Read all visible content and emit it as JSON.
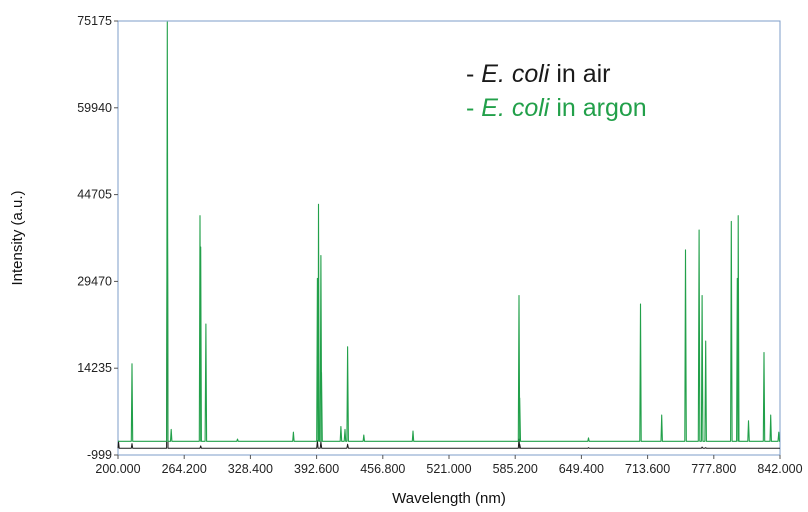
{
  "chart_data": {
    "type": "line",
    "title": "",
    "xlabel": "Wavelength (nm)",
    "ylabel": "Intensity (a.u.)",
    "xlim": [
      200.0,
      842.0
    ],
    "ylim": [
      -999,
      75175
    ],
    "x_ticks": [
      200.0,
      264.2,
      328.4,
      392.6,
      456.8,
      521.0,
      585.2,
      649.4,
      713.6,
      777.8,
      842.0
    ],
    "x_tick_labels": [
      "200.000",
      "264.200",
      "328.400",
      "392.600",
      "456.800",
      "521.000",
      "585.200",
      "649.400",
      "713.600",
      "777.800",
      "842.000"
    ],
    "y_ticks": [
      -999,
      14235,
      29470,
      44705,
      59940,
      75175
    ],
    "y_tick_labels": [
      "-999",
      "14235",
      "29470",
      "44705",
      "59940",
      "75175"
    ],
    "grid": false,
    "legend_position": "top-right",
    "legend": [
      {
        "prefix": "- ",
        "italic": "E. coli",
        "suffix": " in air",
        "color": "#1a1a1a"
      },
      {
        "prefix": "- ",
        "italic": "E. coli",
        "suffix": " in argon",
        "color": "#22a04a"
      }
    ],
    "series": [
      {
        "color": "#1a1a1a",
        "baseline": 200,
        "peaks": [
          [
            200.5,
            1400
          ],
          [
            213.6,
            1000
          ],
          [
            247.8,
            52000
          ],
          [
            280.2,
            600
          ],
          [
            393.4,
            1500
          ],
          [
            396.8,
            1300
          ],
          [
            422.7,
            900
          ],
          [
            588.9,
            1800
          ],
          [
            589.6,
            900
          ],
          [
            656.3,
            300
          ],
          [
            766.5,
            400
          ],
          [
            769.9,
            300
          ]
        ]
      },
      {
        "color": "#22a04a",
        "baseline": 1400,
        "peaks": [
          [
            213.6,
            15000
          ],
          [
            247.8,
            75000
          ],
          [
            251.6,
            3500
          ],
          [
            279.5,
            41000
          ],
          [
            280.2,
            35500
          ],
          [
            285.2,
            22000
          ],
          [
            315.9,
            1800
          ],
          [
            370.1,
            3000
          ],
          [
            393.4,
            30000
          ],
          [
            394.4,
            43000
          ],
          [
            396.8,
            34000
          ],
          [
            397.4,
            13500
          ],
          [
            416.2,
            4000
          ],
          [
            420.1,
            3500
          ],
          [
            422.7,
            18000
          ],
          [
            438.4,
            2500
          ],
          [
            486.1,
            3200
          ],
          [
            588.9,
            27000
          ],
          [
            589.6,
            9000
          ],
          [
            656.3,
            2000
          ],
          [
            706.7,
            25500
          ],
          [
            727.3,
            6000
          ],
          [
            750.4,
            35000
          ],
          [
            763.5,
            38500
          ],
          [
            766.5,
            27000
          ],
          [
            769.9,
            19000
          ],
          [
            794.8,
            40000
          ],
          [
            800.6,
            30000
          ],
          [
            801.5,
            41000
          ],
          [
            811.5,
            5000
          ],
          [
            826.5,
            17000
          ],
          [
            833.0,
            6000
          ],
          [
            840.8,
            3000
          ]
        ]
      }
    ]
  }
}
